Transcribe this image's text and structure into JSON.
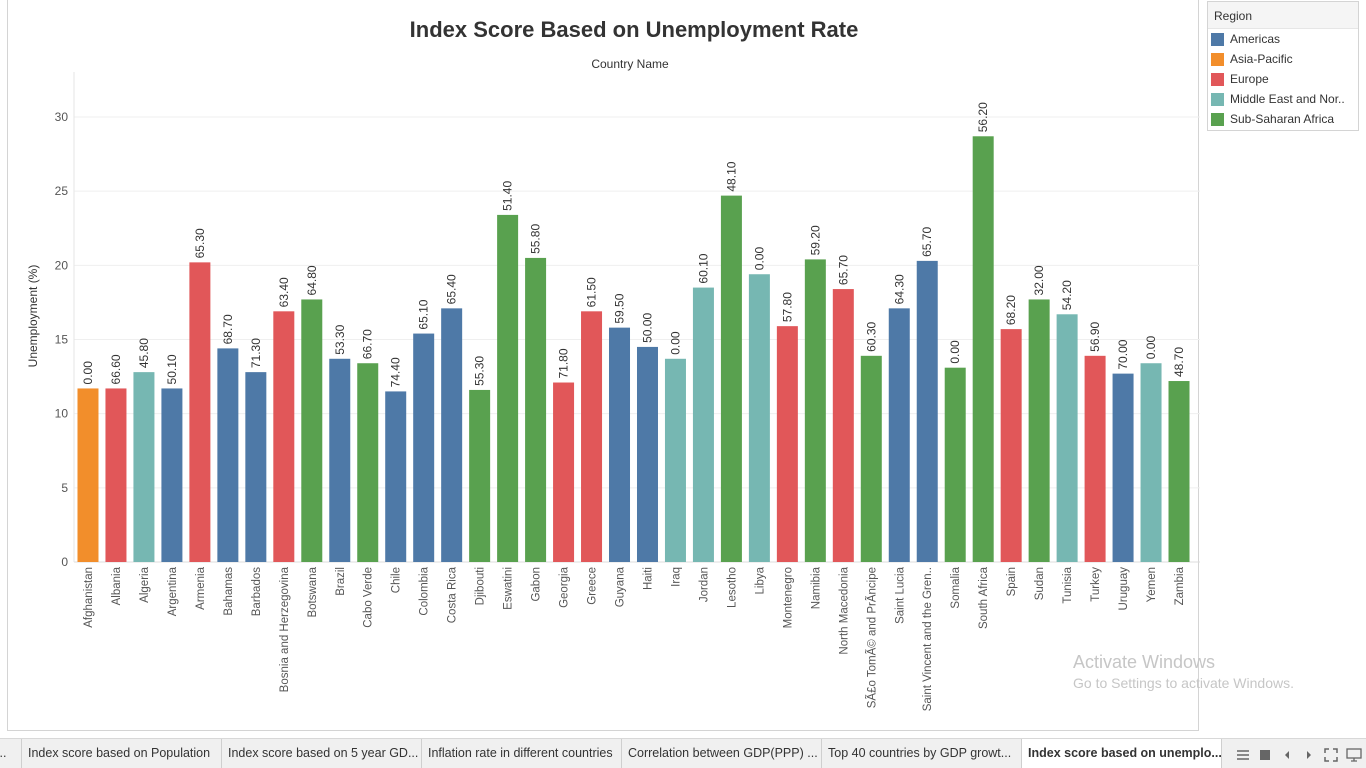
{
  "chart_data": {
    "type": "bar",
    "title": "Index Score Based on Unemployment Rate",
    "subtitle": "Country Name",
    "ylabel": "Unemployment (%)",
    "ylim": [
      0,
      32
    ],
    "yticks": [
      0,
      5,
      10,
      15,
      20,
      25,
      30
    ],
    "grid": true,
    "legend_position": "right",
    "categories": [
      "Afghanistan",
      "Albania",
      "Algeria",
      "Argentina",
      "Armenia",
      "Bahamas",
      "Barbados",
      "Bosnia and Herzegovina",
      "Botswana",
      "Brazil",
      "Cabo Verde",
      "Chile",
      "Colombia",
      "Costa Rica",
      "Djibouti",
      "Eswatini",
      "Gabon",
      "Georgia",
      "Greece",
      "Guyana",
      "Haiti",
      "Iraq",
      "Jordan",
      "Lesotho",
      "Libya",
      "Montenegro",
      "Namibia",
      "North Macedonia",
      "SÃ£o TomÃ© and PrÃ­ncipe",
      "Saint Lucia",
      "Saint Vincent and the Gren..",
      "Somalia",
      "South Africa",
      "Spain",
      "Sudan",
      "Tunisia",
      "Turkey",
      "Uruguay",
      "Yemen",
      "Zambia"
    ],
    "values": [
      11.7,
      11.7,
      12.8,
      11.7,
      20.2,
      14.4,
      12.8,
      16.9,
      17.7,
      13.7,
      13.4,
      11.5,
      15.4,
      17.1,
      11.6,
      23.4,
      20.5,
      12.1,
      16.9,
      15.8,
      14.5,
      13.7,
      18.5,
      24.7,
      19.4,
      15.9,
      20.4,
      18.4,
      13.9,
      17.1,
      20.3,
      13.1,
      28.7,
      15.7,
      17.7,
      16.7,
      13.9,
      12.7,
      13.4,
      12.2
    ],
    "labels": [
      "0.00",
      "66.60",
      "45.80",
      "50.10",
      "65.30",
      "68.70",
      "71.30",
      "63.40",
      "64.80",
      "53.30",
      "66.70",
      "74.40",
      "65.10",
      "65.40",
      "55.30",
      "51.40",
      "55.80",
      "71.80",
      "61.50",
      "59.50",
      "50.00",
      "0.00",
      "60.10",
      "48.10",
      "0.00",
      "57.80",
      "59.20",
      "65.70",
      "60.30",
      "64.30",
      "65.70",
      "0.00",
      "56.20",
      "68.20",
      "32.00",
      "54.20",
      "56.90",
      "70.00",
      "0.00",
      "48.70"
    ],
    "regions": [
      "Asia-Pacific",
      "Europe",
      "Middle East and North Africa",
      "Americas",
      "Europe",
      "Americas",
      "Americas",
      "Europe",
      "Sub-Saharan Africa",
      "Americas",
      "Sub-Saharan Africa",
      "Americas",
      "Americas",
      "Americas",
      "Sub-Saharan Africa",
      "Sub-Saharan Africa",
      "Sub-Saharan Africa",
      "Europe",
      "Europe",
      "Americas",
      "Americas",
      "Middle East and North Africa",
      "Middle East and North Africa",
      "Sub-Saharan Africa",
      "Middle East and North Africa",
      "Europe",
      "Sub-Saharan Africa",
      "Europe",
      "Sub-Saharan Africa",
      "Americas",
      "Americas",
      "Sub-Saharan Africa",
      "Sub-Saharan Africa",
      "Europe",
      "Sub-Saharan Africa",
      "Middle East and North Africa",
      "Europe",
      "Americas",
      "Middle East and North Africa",
      "Sub-Saharan Africa"
    ],
    "region_colors": {
      "Americas": "#4e79a7",
      "Asia-Pacific": "#f28e2b",
      "Europe": "#e15759",
      "Middle East and North Africa": "#76b7b2",
      "Sub-Saharan Africa": "#59a14f"
    }
  },
  "legend": {
    "title": "Region",
    "items": [
      {
        "label": "Americas",
        "color": "#4e79a7"
      },
      {
        "label": "Asia-Pacific",
        "color": "#f28e2b"
      },
      {
        "label": "Europe",
        "color": "#e15759"
      },
      {
        "label": "Middle East and Nor..",
        "color": "#76b7b2"
      },
      {
        "label": "Sub-Saharan Africa",
        "color": "#59a14f"
      }
    ]
  },
  "watermark": {
    "line1": "Activate Windows",
    "line2": "Go to Settings to activate Windows."
  },
  "tabs": [
    {
      "label": "r..",
      "active": false
    },
    {
      "label": "Index score based on Population",
      "active": false
    },
    {
      "label": "Index score based on 5 year GD...",
      "active": false
    },
    {
      "label": "Inflation rate in different countries",
      "active": false
    },
    {
      "label": "Correlation between GDP(PPP) ...",
      "active": false
    },
    {
      "label": "Top 40 countries by GDP growt...",
      "active": false
    },
    {
      "label": "Index score based on unemplo...",
      "active": true
    }
  ],
  "nav": {
    "grid_icon": "grid-view-icon",
    "square_icon": "single-view-icon",
    "prev_icon": "previous-sheet-icon",
    "next_icon": "next-sheet-icon",
    "fullscreen_icon": "fullscreen-icon",
    "present_icon": "presentation-icon"
  }
}
